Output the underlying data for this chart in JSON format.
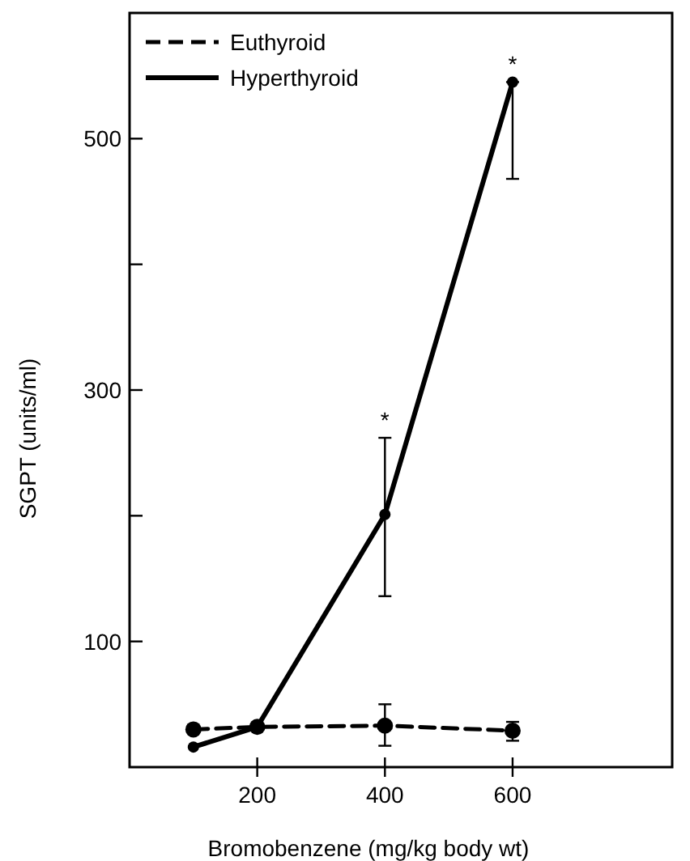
{
  "chart_data": {
    "type": "line",
    "xlabel": "Bromobenzene (mg/kg body wt)",
    "ylabel": "SGPT (units/ml)",
    "x": [
      100,
      200,
      400,
      600
    ],
    "series": [
      {
        "name": "Euthyroid",
        "color": "#000000",
        "line_style": "dashed",
        "values": [
          30,
          32,
          33,
          29
        ],
        "errors": [
          null,
          null,
          [
            17,
            50
          ],
          [
            21,
            36
          ]
        ]
      },
      {
        "name": "Hyperthyroid",
        "color": "#000000",
        "line_style": "solid",
        "values": [
          16,
          32,
          201,
          545
        ],
        "errors": [
          null,
          null,
          [
            136,
            262
          ],
          [
            468,
            545
          ]
        ]
      }
    ],
    "xlim": [
      0,
      850
    ],
    "xticks": [
      200,
      400,
      600
    ],
    "ylim": [
      0,
      600
    ],
    "yticks": [
      {
        "value": 100,
        "label": "100"
      },
      {
        "value": 200,
        "label": null
      },
      {
        "value": 300,
        "label": "300"
      },
      {
        "value": 400,
        "label": null
      },
      {
        "value": 500,
        "label": "500"
      }
    ],
    "marker": "circle",
    "grid": false,
    "legend": "top left",
    "annotations": [
      {
        "text": "*",
        "x": 400,
        "y": 262
      },
      {
        "text": "*",
        "x": 600,
        "y": 545
      }
    ]
  }
}
